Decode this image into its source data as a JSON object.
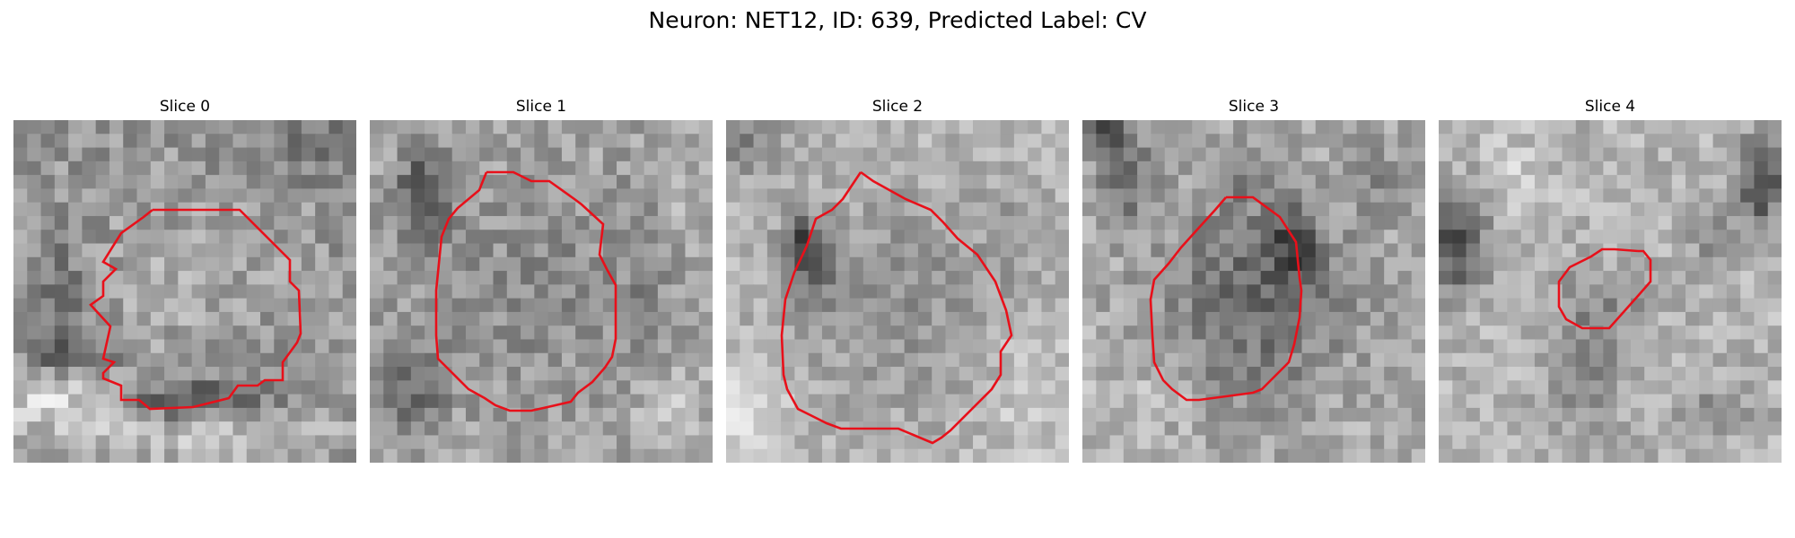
{
  "figure": {
    "title": "Neuron: NET12, ID: 639, Predicted Label: CV"
  },
  "slices": [
    {
      "label": "Slice 0"
    },
    {
      "label": "Slice 1"
    },
    {
      "label": "Slice 2"
    },
    {
      "label": "Slice 3"
    },
    {
      "label": "Slice 4"
    }
  ],
  "colors": {
    "contour": "#e8101a",
    "background": "#ffffff"
  }
}
